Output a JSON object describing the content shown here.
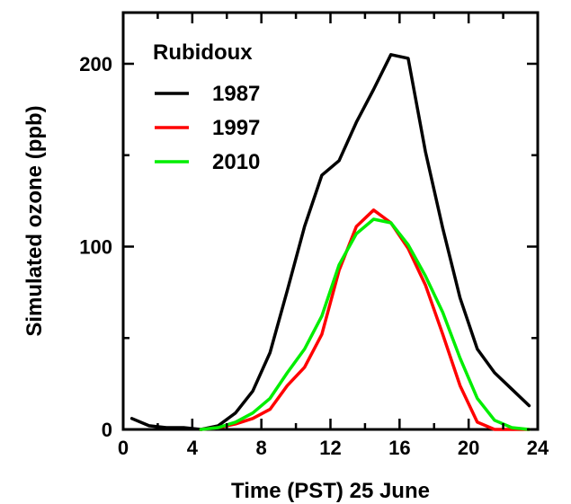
{
  "chart_data": {
    "type": "line",
    "title": "",
    "legend_title": "Rubidoux",
    "legend_position": "top-left",
    "xlabel": "Time (PST) 25 June",
    "ylabel": "Simulated ozone  (ppb)",
    "xlim": [
      0,
      24
    ],
    "ylim": [
      0,
      228
    ],
    "xticks": [
      0,
      4,
      8,
      12,
      16,
      20,
      24
    ],
    "yticks": [
      0,
      100,
      200
    ],
    "grid": false,
    "series": [
      {
        "name": "1987",
        "color": "#000000",
        "x": [
          0.5,
          1.5,
          2.5,
          3.5,
          4.5,
          5.5,
          6.5,
          7.5,
          8.5,
          9.5,
          10.5,
          11.5,
          12.5,
          13.5,
          14.5,
          15.5,
          16.5,
          17.5,
          18.5,
          19.5,
          20.5,
          21.5,
          22.5,
          23.5
        ],
        "values": [
          6,
          2,
          1,
          1,
          0,
          2,
          9,
          21,
          42,
          76,
          111,
          139,
          147,
          168,
          186,
          205,
          203,
          152,
          110,
          72,
          44,
          31,
          22,
          13
        ]
      },
      {
        "name": "1997",
        "color": "#ff0000",
        "x": [
          4.5,
          5.5,
          6.5,
          7.5,
          8.5,
          9.5,
          10.5,
          11.5,
          12.5,
          13.5,
          14.5,
          15.5,
          16.5,
          17.5,
          18.5,
          19.5,
          20.5,
          21.5,
          22.5,
          23.5
        ],
        "values": [
          0,
          1,
          3,
          6,
          11,
          24,
          34,
          52,
          87,
          111,
          120,
          113,
          99,
          79,
          52,
          24,
          4,
          0,
          0,
          0
        ]
      },
      {
        "name": "2010",
        "color": "#00ee00",
        "x": [
          4.5,
          5.5,
          6.5,
          7.5,
          8.5,
          9.5,
          10.5,
          11.5,
          12.5,
          13.5,
          14.5,
          15.5,
          16.5,
          17.5,
          18.5,
          19.5,
          20.5,
          21.5,
          22.5,
          23.5
        ],
        "values": [
          0,
          1,
          4,
          9,
          17,
          31,
          44,
          62,
          90,
          107,
          115,
          113,
          101,
          84,
          64,
          39,
          17,
          5,
          1,
          0
        ]
      }
    ]
  }
}
